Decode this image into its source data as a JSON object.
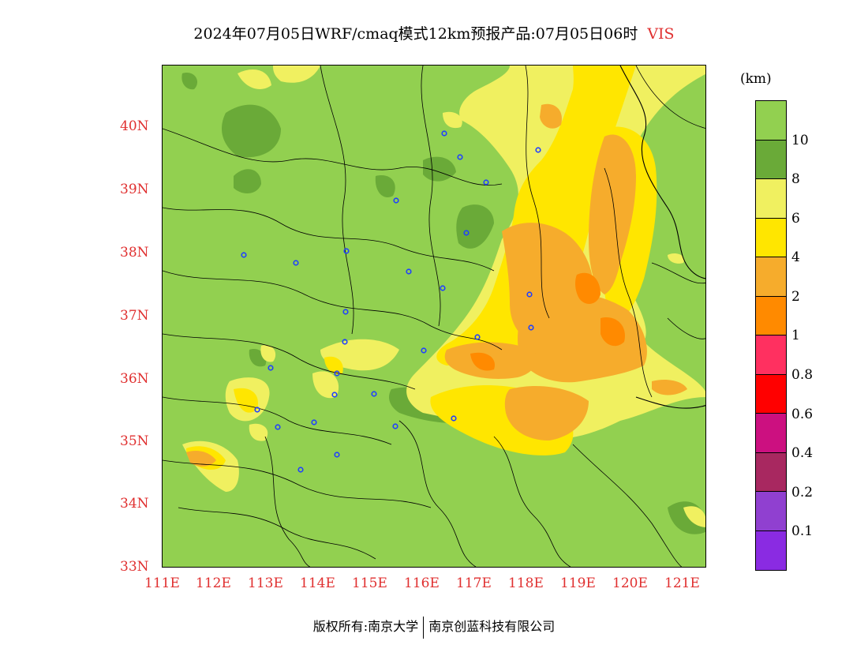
{
  "title": {
    "text": "2024年07月05日WRF/cmaq模式12km预报产品:07月05日06时",
    "variable": "VIS"
  },
  "map": {
    "lat_ticks": [
      "40N",
      "39N",
      "38N",
      "37N",
      "36N",
      "35N",
      "34N",
      "33N"
    ],
    "lon_ticks": [
      "111E",
      "112E",
      "113E",
      "114E",
      "115E",
      "116E",
      "117E",
      "118E",
      "119E",
      "120E",
      "121E"
    ]
  },
  "legend": {
    "unit": "(km)",
    "labels": [
      "10",
      "8",
      "6",
      "4",
      "2",
      "1",
      "0.8",
      "0.6",
      "0.4",
      "0.2",
      "0.1"
    ],
    "colors": [
      "#92d050",
      "#6aaa38",
      "#f0f060",
      "#ffe600",
      "#f6ac2c",
      "#ff8a00",
      "#ff3060",
      "#ff0000",
      "#cc1080",
      "#a82860",
      "#9040d0",
      "#8a2be2"
    ]
  },
  "footer": {
    "copyright": "版权所有:南京大学",
    "company": "南京创蓝科技有限公司"
  }
}
